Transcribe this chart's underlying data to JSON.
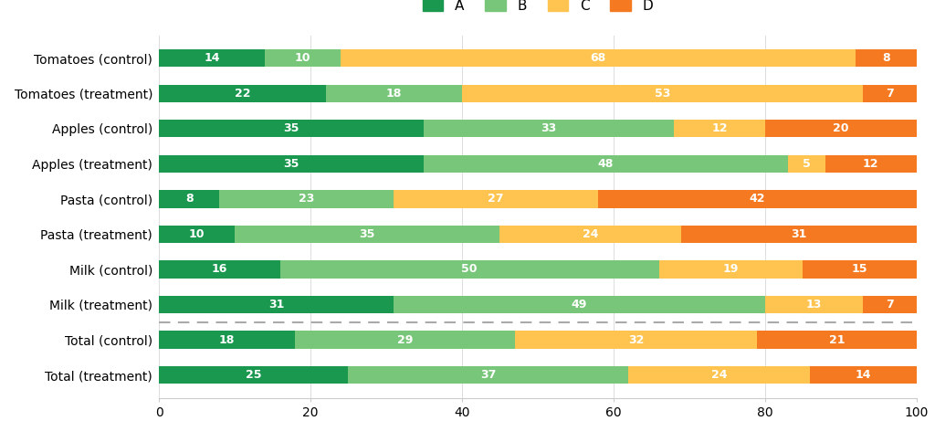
{
  "categories": [
    "Tomatoes (control)",
    "Tomatoes (treatment)",
    "Apples (control)",
    "Apples (treatment)",
    "Pasta (control)",
    "Pasta (treatment)",
    "Milk (control)",
    "Milk (treatment)",
    "Total (control)",
    "Total (treatment)"
  ],
  "values": [
    [
      14,
      10,
      68,
      8
    ],
    [
      22,
      18,
      53,
      7
    ],
    [
      35,
      33,
      12,
      20
    ],
    [
      35,
      48,
      5,
      12
    ],
    [
      8,
      23,
      27,
      42
    ],
    [
      10,
      35,
      24,
      31
    ],
    [
      16,
      50,
      19,
      15
    ],
    [
      31,
      49,
      13,
      7
    ],
    [
      18,
      29,
      32,
      21
    ],
    [
      25,
      37,
      24,
      14
    ]
  ],
  "colors": [
    "#1a9850",
    "#78c679",
    "#fec44f",
    "#f47920"
  ],
  "legend_labels": [
    "A",
    "B",
    "C",
    "D"
  ],
  "xlim": [
    0,
    100
  ],
  "bar_height": 0.5,
  "background_color": "#ffffff",
  "text_color": "#ffffff",
  "label_fontsize": 9.0,
  "legend_fontsize": 11,
  "tick_fontsize": 10,
  "dashed_line_after_index": 7,
  "fig_width": 10.24,
  "fig_height": 4.84
}
